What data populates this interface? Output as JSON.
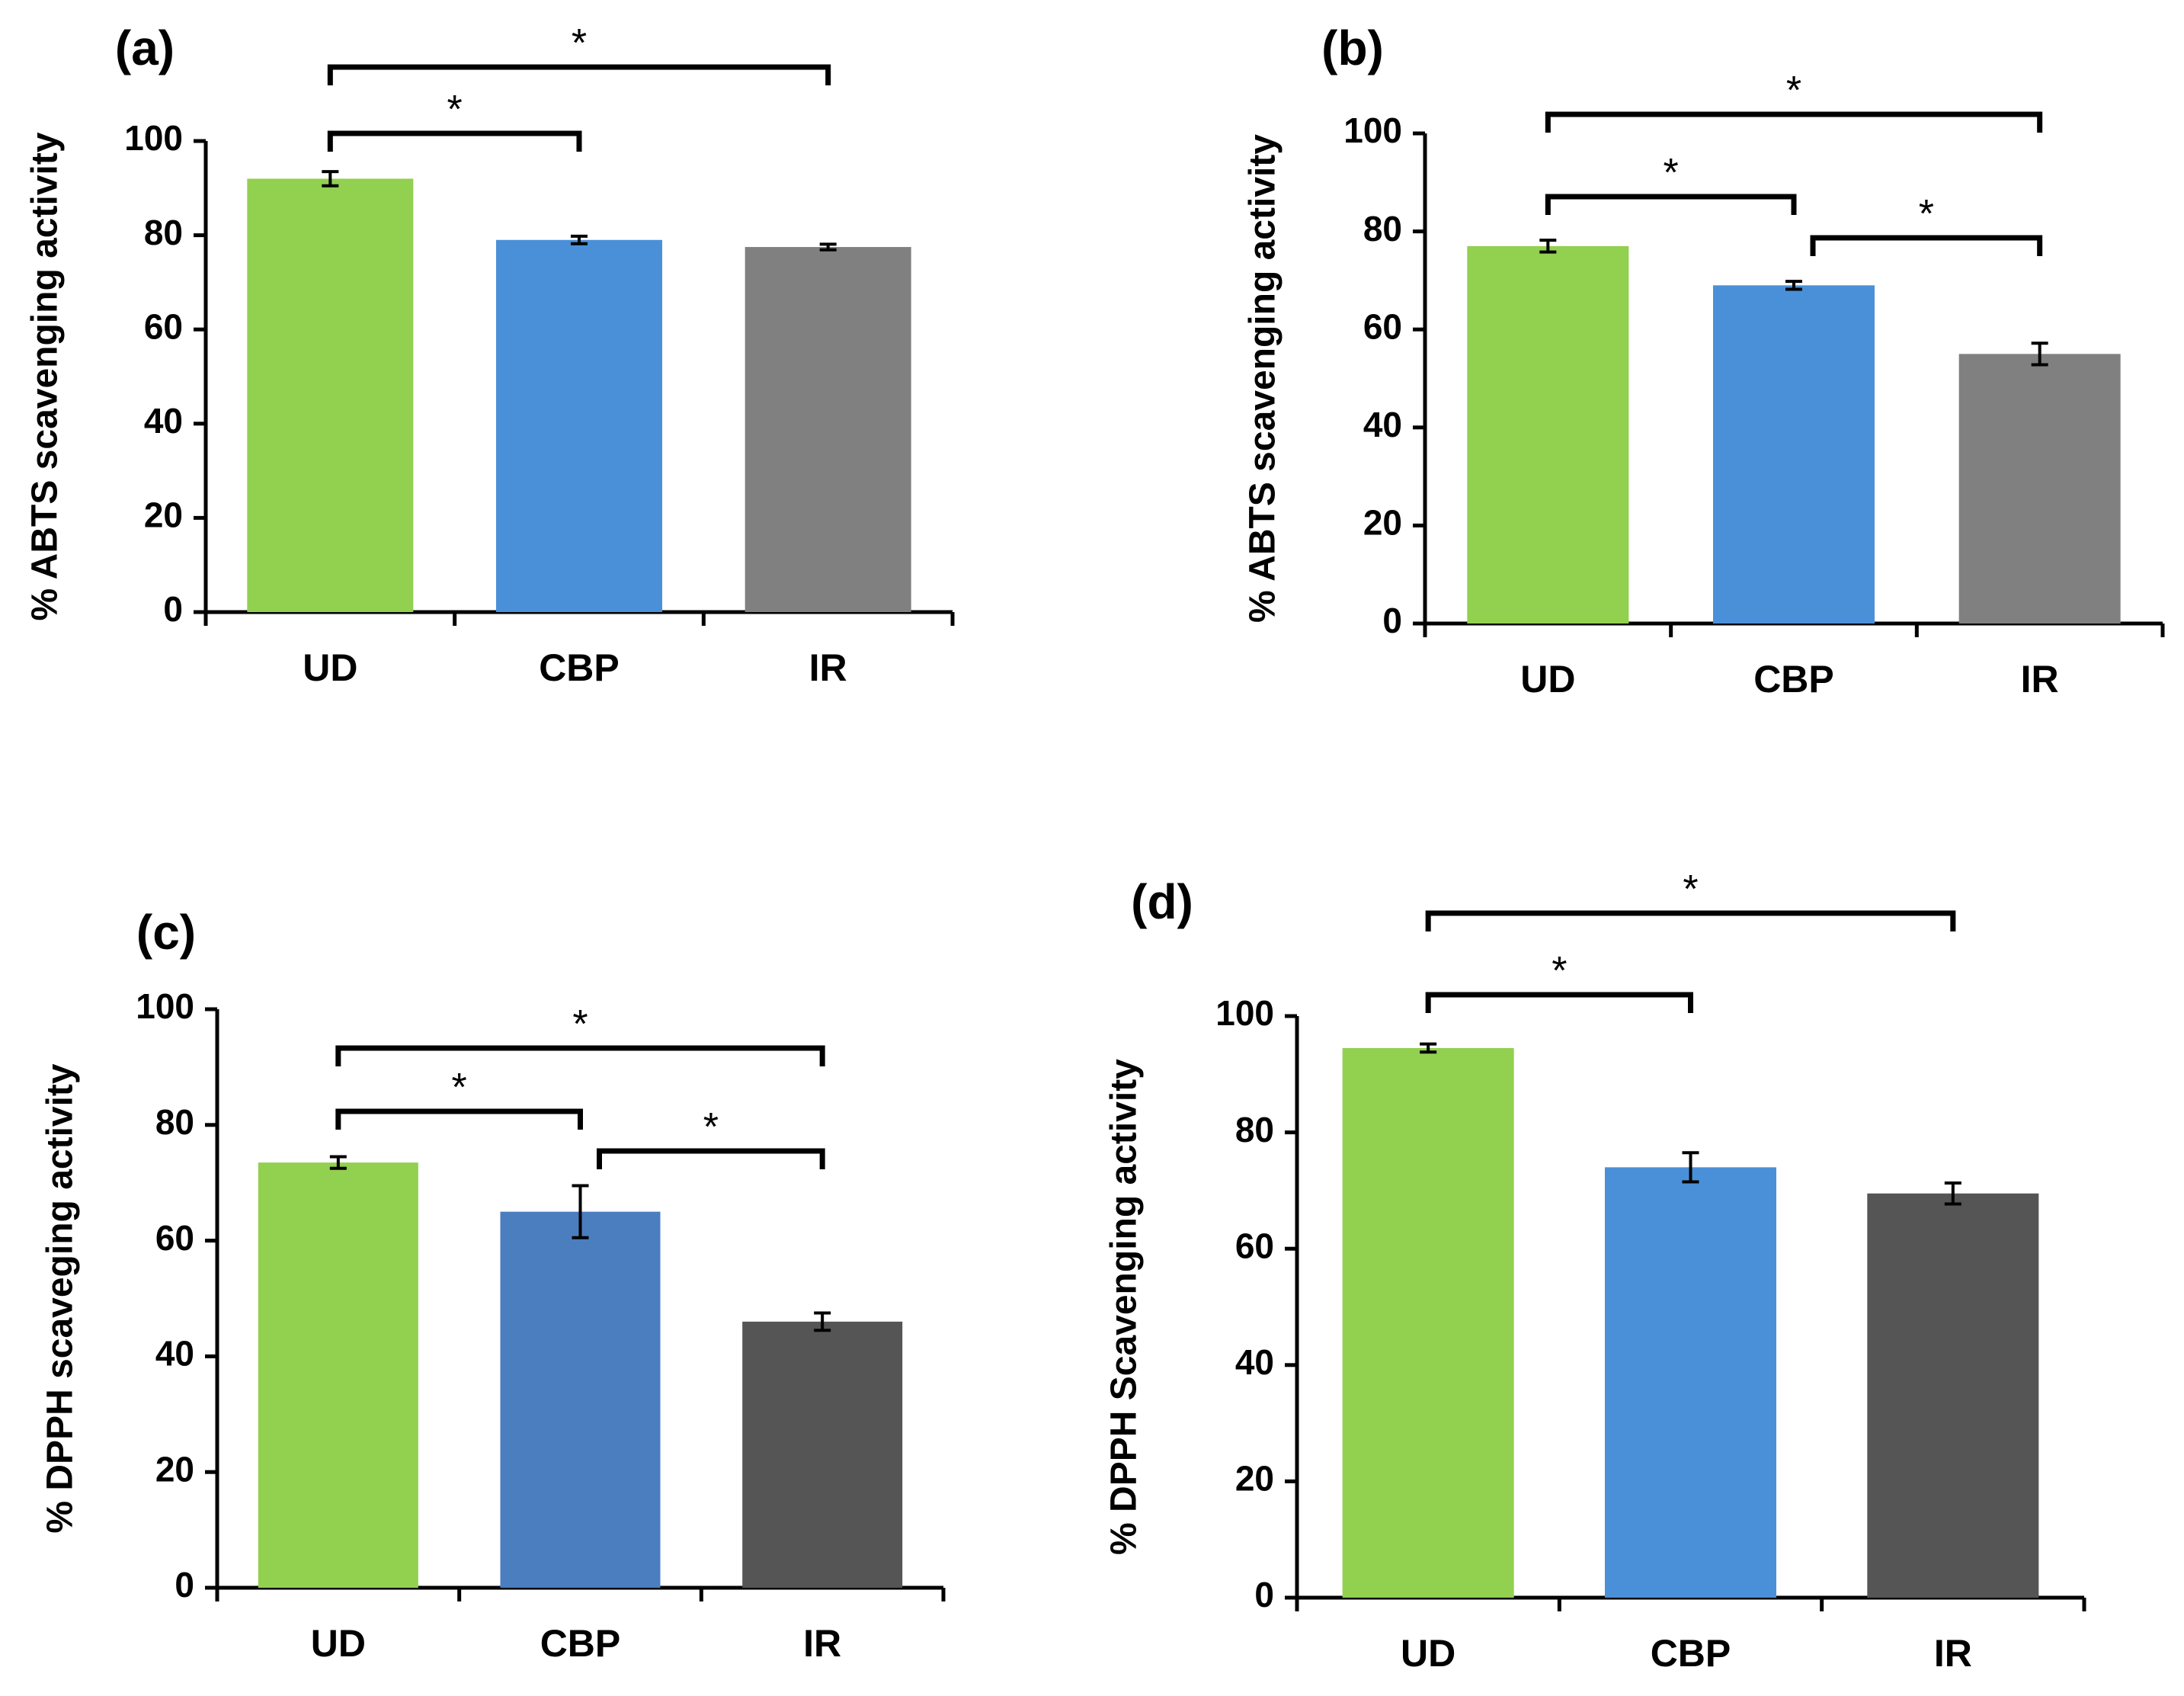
{
  "chart_data": [
    {
      "type": "bar",
      "panel_label": "(a)",
      "categories": [
        "UD",
        "CBP",
        "IR"
      ],
      "values": [
        92,
        79,
        77.5
      ],
      "errors": [
        1.5,
        0.8,
        0.6
      ],
      "colors": [
        "#92D050",
        "#4A90D9",
        "#808080"
      ],
      "ylabel": "% ABTS scavenging activity",
      "ylim": [
        0,
        100
      ],
      "yticks": [
        "0",
        "20",
        "40",
        "60",
        "80",
        "100"
      ],
      "significance": [
        {
          "from": 0,
          "to": 1,
          "level": 1,
          "label": "*"
        },
        {
          "from": 0,
          "to": 2,
          "level": 2,
          "label": "*"
        }
      ]
    },
    {
      "type": "bar",
      "panel_label": "(b)",
      "categories": [
        "UD",
        "CBP",
        "IR"
      ],
      "values": [
        77,
        69,
        55
      ],
      "errors": [
        1.2,
        0.8,
        2.2
      ],
      "colors": [
        "#92D050",
        "#4A90D9",
        "#808080"
      ],
      "ylabel": "% ABTS scavenging activity",
      "ylim": [
        0,
        100
      ],
      "yticks": [
        "0",
        "20",
        "40",
        "60",
        "80",
        "100"
      ],
      "significance": [
        {
          "from": 0,
          "to": 1,
          "level": 1,
          "label": "*"
        },
        {
          "from": 1,
          "to": 2,
          "level": 0,
          "label": "*"
        },
        {
          "from": 0,
          "to": 2,
          "level": 2,
          "label": "*"
        }
      ]
    },
    {
      "type": "bar",
      "panel_label": "(c)",
      "categories": [
        "UD",
        "CBP",
        "IR"
      ],
      "values": [
        73.5,
        65,
        46
      ],
      "errors": [
        1,
        4.5,
        1.5
      ],
      "colors": [
        "#92D050",
        "#4A7EBF",
        "#555555"
      ],
      "ylabel": "% DPPH scaveging activity",
      "ylim": [
        0,
        100
      ],
      "yticks": [
        "0",
        "20",
        "40",
        "60",
        "80",
        "100"
      ],
      "significance": [
        {
          "from": 0,
          "to": 1,
          "level": 1,
          "label": "*"
        },
        {
          "from": 1,
          "to": 2,
          "level": 0,
          "label": "*"
        },
        {
          "from": 0,
          "to": 2,
          "level": 2,
          "label": "*"
        }
      ]
    },
    {
      "type": "bar",
      "panel_label": "(d)",
      "categories": [
        "UD",
        "CBP",
        "IR"
      ],
      "values": [
        94.5,
        74,
        69.5
      ],
      "errors": [
        0.7,
        2.5,
        1.8
      ],
      "colors": [
        "#92D050",
        "#4A90D9",
        "#555555"
      ],
      "ylabel": "% DPPH Scavenging activity",
      "ylim": [
        0,
        100
      ],
      "yticks": [
        "0",
        "20",
        "40",
        "60",
        "80",
        "100"
      ],
      "significance": [
        {
          "from": 0,
          "to": 1,
          "level": 1,
          "label": "*"
        },
        {
          "from": 0,
          "to": 2,
          "level": 2,
          "label": "*"
        }
      ]
    }
  ]
}
